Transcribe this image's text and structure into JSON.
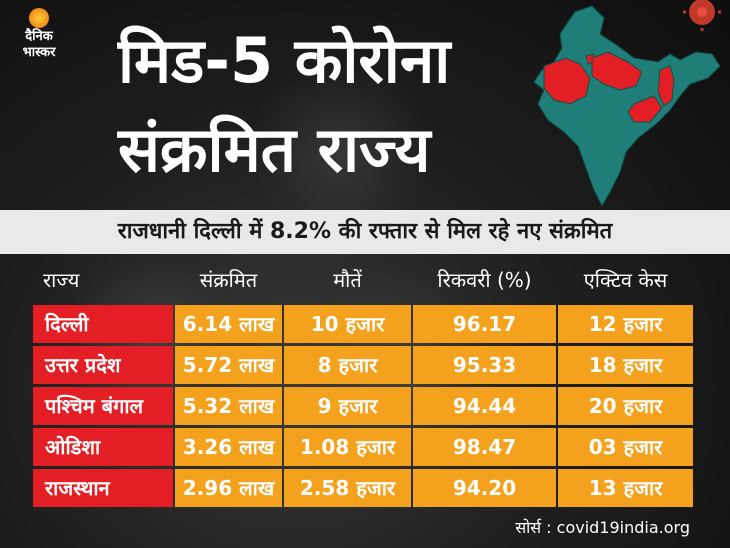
{
  "logo": {
    "line1": "दैनिक",
    "line2": "भास्कर"
  },
  "title": {
    "line1": "मिड-5 कोरोना",
    "line2": "संक्रमित राज्य"
  },
  "subtitle": "राजधानी दिल्ली में 8.2% की रफ्तार से मिल रहे नए संक्रमित",
  "table": {
    "headers": [
      "राज्य",
      "संक्रमित",
      "मौतें",
      "रिकवरी (%)",
      "एक्टिव केस"
    ],
    "rows": [
      {
        "state": "दिल्ली",
        "infected": "6.14 लाख",
        "deaths": "10 हजार",
        "recovery": "96.17",
        "active": "12 हजार"
      },
      {
        "state": "उत्तर प्रदेश",
        "infected": "5.72 लाख",
        "deaths": "8 हजार",
        "recovery": "95.33",
        "active": "18 हजार"
      },
      {
        "state": "पश्चिम बंगाल",
        "infected": "5.32 लाख",
        "deaths": "9 हजार",
        "recovery": "94.44",
        "active": "20 हजार"
      },
      {
        "state": "ओडिशा",
        "infected": "3.26 लाख",
        "deaths": "1.08 हजार",
        "recovery": "98.47",
        "active": "03 हजार"
      },
      {
        "state": "राजस्थान",
        "infected": "2.96 लाख",
        "deaths": "2.58 हजार",
        "recovery": "94.20",
        "active": "13 हजार"
      }
    ]
  },
  "source": "सोर्स : covid19india.org",
  "colors": {
    "state_cell": "#e31e24",
    "value_cell": "#f4a21d",
    "map_base": "#1f7f78",
    "map_highlight": "#e31e24"
  }
}
